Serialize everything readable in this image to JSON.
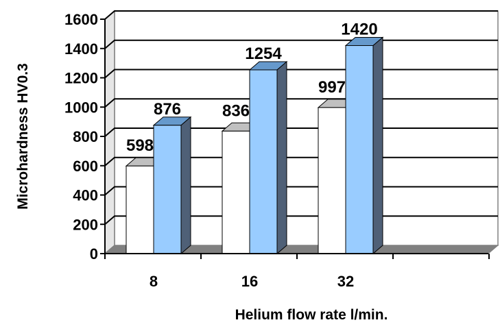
{
  "chart_data": {
    "type": "bar",
    "title": "",
    "xlabel": "Helium flow rate   l/min.",
    "ylabel": "Microhardness  HV0.3",
    "categories": [
      "8",
      "16",
      "32"
    ],
    "series": [
      {
        "values": [
          598,
          836,
          997
        ],
        "color": "#ffffff"
      },
      {
        "values": [
          876,
          1254,
          1420
        ],
        "color": "#99ccff"
      }
    ],
    "yticks": [
      0,
      200,
      400,
      600,
      800,
      1000,
      1200,
      1400,
      1600
    ],
    "ylim": [
      0,
      1600
    ],
    "grid": true,
    "legend": "none",
    "three_d": true
  }
}
